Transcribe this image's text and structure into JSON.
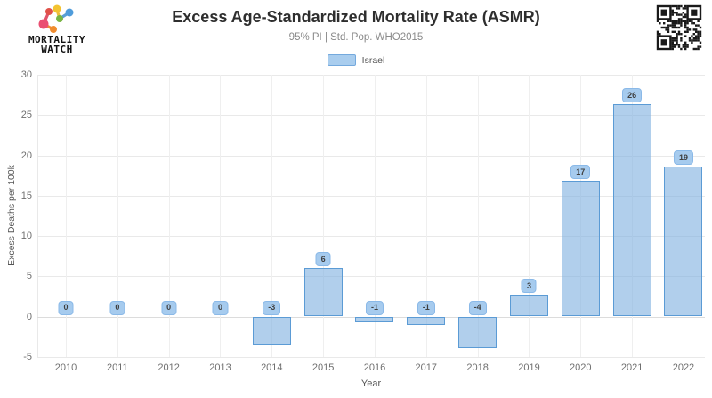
{
  "header": {
    "logo": {
      "line1": "MORTALITY",
      "line2": "WATCH"
    }
  },
  "chart_data": {
    "type": "bar",
    "title": "Excess Age-Standardized Mortality Rate (ASMR)",
    "subtitle": "95% PI | Std. Pop. WHO2015",
    "series_name": "Israel",
    "categories": [
      "2010",
      "2011",
      "2012",
      "2013",
      "2014",
      "2015",
      "2016",
      "2017",
      "2018",
      "2019",
      "2020",
      "2021",
      "2022"
    ],
    "values": [
      0,
      0,
      0,
      0,
      -3.5,
      6.0,
      -0.7,
      -1.0,
      -3.9,
      2.7,
      16.8,
      26.3,
      18.6
    ],
    "bar_labels": [
      "0",
      "0",
      "0",
      "0",
      "-3",
      "6",
      "-1",
      "-1",
      "-4",
      "3",
      "17",
      "26",
      "19"
    ],
    "xlabel": "Year",
    "ylabel": "Excess Deaths per 100k",
    "ylim": [
      -5,
      30
    ],
    "yticks": [
      -5,
      0,
      5,
      10,
      15,
      20,
      25,
      30
    ],
    "grid": true,
    "legend_position": "top",
    "colors": {
      "bar_fill": "rgba(125,175,224,0.60)",
      "bar_border": "#5b9bd5",
      "badge_fill": "#a6cbee",
      "badge_border": "#8ab9e8",
      "badge_text": "#3f3f3f",
      "legend_swatch": "#a9cdee",
      "legend_swatch_border": "#74a9dd"
    }
  }
}
